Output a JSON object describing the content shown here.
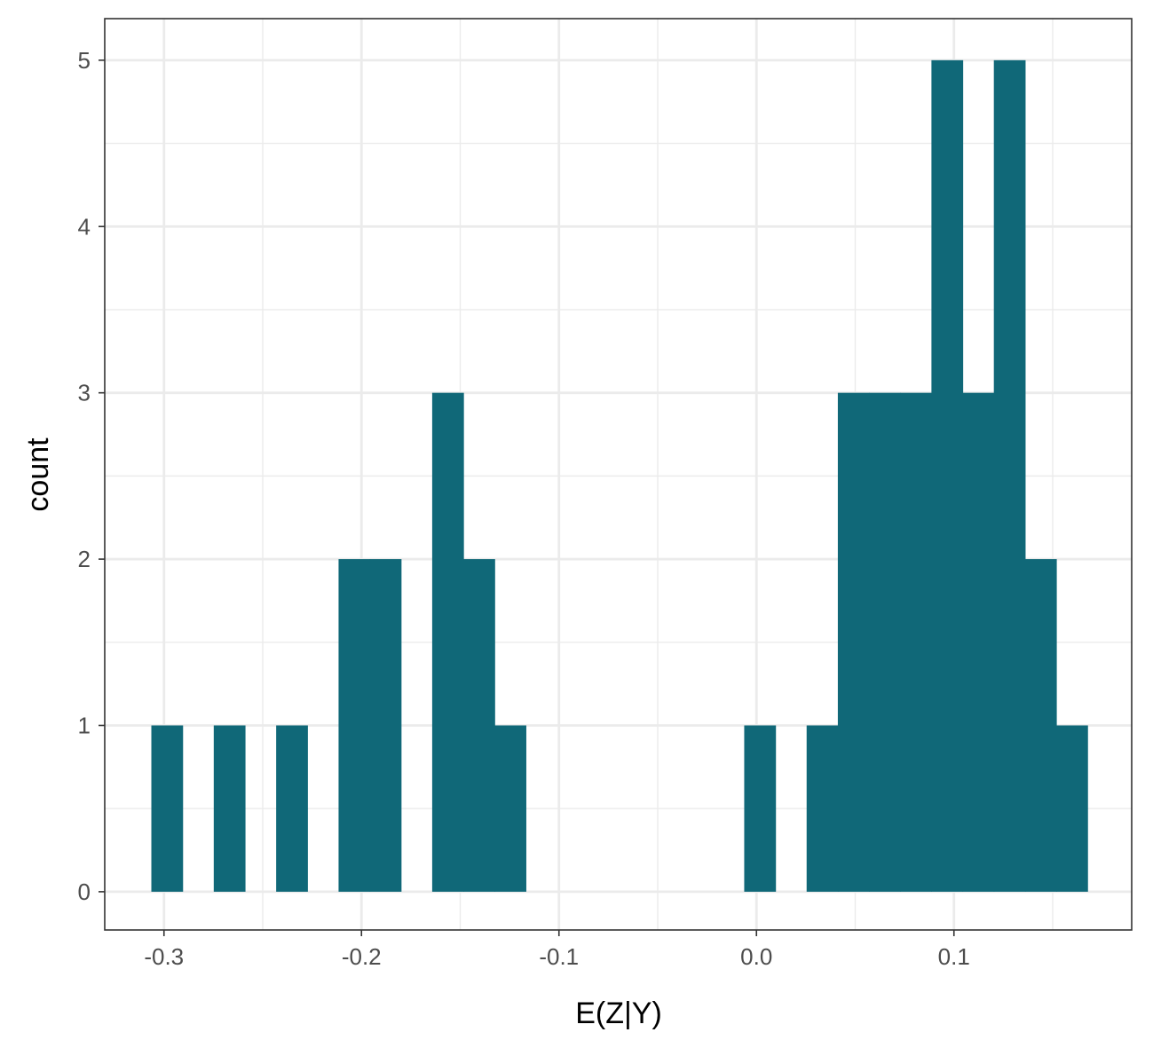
{
  "chart_data": {
    "type": "bar",
    "xlabel": "E(Z|Y)",
    "ylabel": "count",
    "xlim": [
      -0.33,
      0.19
    ],
    "ylim": [
      -0.23,
      5.25
    ],
    "x_ticks": [
      -0.3,
      -0.2,
      -0.1,
      0.0,
      0.1
    ],
    "x_tick_labels": [
      "-0.3",
      "-0.2",
      "-0.1",
      "0.0",
      "0.1"
    ],
    "y_ticks": [
      0,
      1,
      2,
      3,
      4,
      5
    ],
    "y_tick_labels": [
      "0",
      "1",
      "2",
      "3",
      "4",
      "5"
    ],
    "grid": true,
    "bin_width": 0.0158,
    "bins": [
      {
        "x": -0.2985,
        "count": 1
      },
      {
        "x": -0.2827,
        "count": 0
      },
      {
        "x": -0.2669,
        "count": 1
      },
      {
        "x": -0.2511,
        "count": 0
      },
      {
        "x": -0.2353,
        "count": 1
      },
      {
        "x": -0.2195,
        "count": 0
      },
      {
        "x": -0.2037,
        "count": 2
      },
      {
        "x": -0.1879,
        "count": 2
      },
      {
        "x": -0.1721,
        "count": 0
      },
      {
        "x": -0.1563,
        "count": 3
      },
      {
        "x": -0.1405,
        "count": 2
      },
      {
        "x": -0.1247,
        "count": 1
      },
      {
        "x": -0.1089,
        "count": 0
      },
      {
        "x": -0.0931,
        "count": 0
      },
      {
        "x": -0.0773,
        "count": 0
      },
      {
        "x": -0.0615,
        "count": 0
      },
      {
        "x": -0.0457,
        "count": 0
      },
      {
        "x": -0.0299,
        "count": 0
      },
      {
        "x": -0.0141,
        "count": 0
      },
      {
        "x": 0.0017,
        "count": 1
      },
      {
        "x": 0.0175,
        "count": 0
      },
      {
        "x": 0.0333,
        "count": 1
      },
      {
        "x": 0.0491,
        "count": 3
      },
      {
        "x": 0.0649,
        "count": 3
      },
      {
        "x": 0.0807,
        "count": 3
      },
      {
        "x": 0.0965,
        "count": 5
      },
      {
        "x": 0.1123,
        "count": 3
      },
      {
        "x": 0.1281,
        "count": 5
      },
      {
        "x": 0.1439,
        "count": 2
      },
      {
        "x": 0.1597,
        "count": 1
      }
    ],
    "bar_color": "#106878",
    "grid_color": "#ebebeb",
    "panel_border_color": "#333333"
  }
}
